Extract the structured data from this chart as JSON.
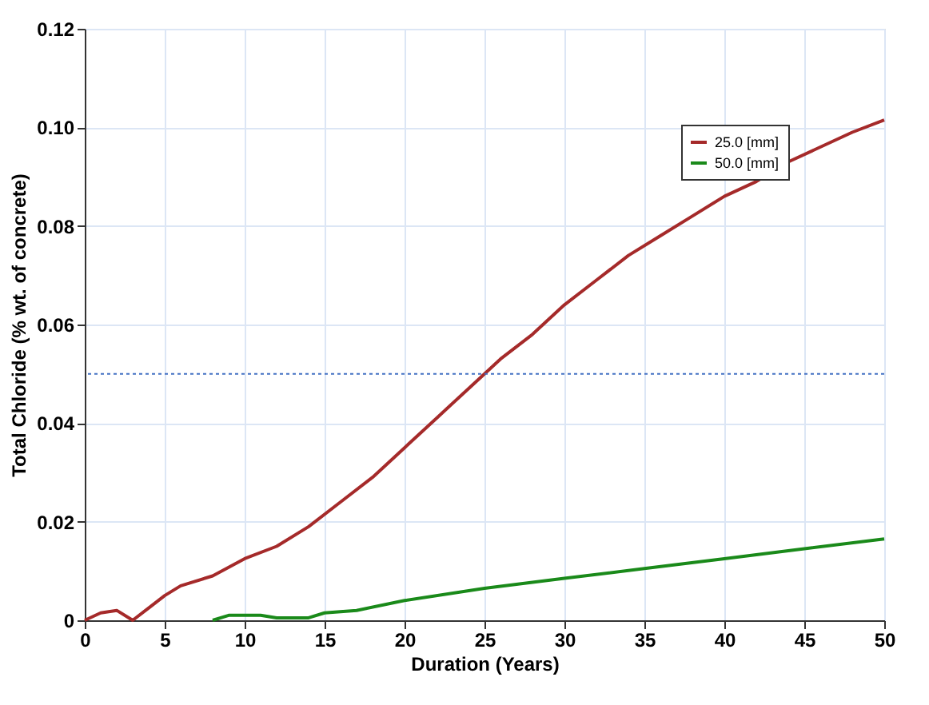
{
  "chart_data": {
    "type": "line",
    "xlabel": "Duration (Years)",
    "ylabel": "Total Chloride (% wt. of concrete)",
    "xlim": [
      0,
      50
    ],
    "xticks": [
      0,
      5,
      10,
      15,
      20,
      25,
      30,
      35,
      40,
      45,
      50
    ],
    "ylim": [
      0,
      0.12
    ],
    "yticks": [
      {
        "value": 0,
        "label": "0"
      },
      {
        "value": 0.02,
        "label": "0.02"
      },
      {
        "value": 0.04,
        "label": "0.04"
      },
      {
        "value": 0.06,
        "label": "0.06"
      },
      {
        "value": 0.08,
        "label": "0.08"
      },
      {
        "value": 0.1,
        "label": "0.10"
      },
      {
        "value": 0.12,
        "label": "0.12"
      }
    ],
    "grid": true,
    "legend": "top right",
    "marker": "none",
    "line_style": "solid",
    "ref_lines": [
      {
        "axis": "y",
        "value": 0.05,
        "color": "#4472c4",
        "line_style": "dotted"
      }
    ],
    "series": [
      {
        "name": "25.0 [mm]",
        "color": "#a52a2a",
        "x": [
          0,
          1,
          2,
          3,
          4,
          5,
          6,
          8,
          10,
          12,
          14,
          16,
          18,
          20,
          22,
          24,
          26,
          28,
          30,
          32,
          34,
          36,
          38,
          40,
          42,
          44,
          46,
          48,
          50
        ],
        "values": [
          0,
          0.0015,
          0.002,
          0,
          0.0025,
          0.005,
          0.007,
          0.009,
          0.0125,
          0.015,
          0.019,
          0.024,
          0.029,
          0.035,
          0.041,
          0.047,
          0.053,
          0.058,
          0.064,
          0.069,
          0.074,
          0.078,
          0.082,
          0.086,
          0.089,
          0.093,
          0.096,
          0.099,
          0.1015
        ]
      },
      {
        "name": "50.0 [mm]",
        "color": "#1a8a1a",
        "x": [
          8,
          9,
          10,
          11,
          12,
          14,
          15,
          17,
          20,
          25,
          30,
          35,
          40,
          45,
          50
        ],
        "values": [
          0,
          0.001,
          0.001,
          0.001,
          0.0005,
          0.0005,
          0.0015,
          0.002,
          0.004,
          0.0065,
          0.0085,
          0.0105,
          0.0125,
          0.0145,
          0.0165
        ]
      }
    ]
  }
}
